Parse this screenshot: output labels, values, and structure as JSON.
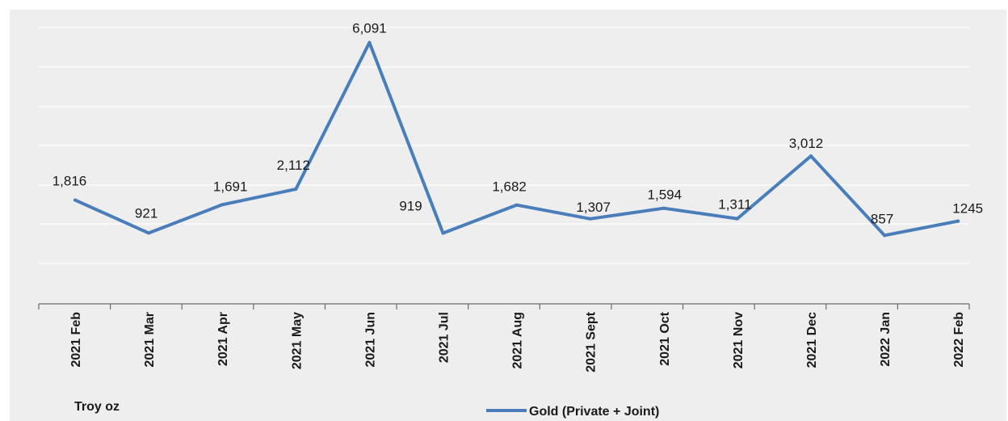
{
  "chart_data": {
    "type": "line",
    "title": "",
    "xlabel": "",
    "ylabel": "",
    "unit_label": "Troy oz",
    "categories": [
      "2021 Feb",
      "2021 Mar",
      "2021 Apr",
      "2021 May",
      "2021 Jun",
      "2021 Jul",
      "2021 Aug",
      "2021 Sept",
      "2021 Oct",
      "2021 Nov",
      "2021 Dec",
      "2022 Jan",
      "2022 Feb"
    ],
    "series": [
      {
        "name": "Gold (Private + Joint)",
        "color": "#4a7ebb",
        "values": [
          1816,
          921,
          1691,
          2112,
          6091,
          919,
          1682,
          1307,
          1594,
          1311,
          3012,
          857,
          1245
        ],
        "value_labels": [
          "1,816",
          "921",
          "1,691",
          "2,112",
          "6,091",
          "919",
          "1,682",
          "1,307",
          "1,594",
          "1,311",
          "3,012",
          "857",
          "1245"
        ]
      }
    ],
    "ylim": [
      -1000,
      6500
    ],
    "grid": true,
    "legend_position": "bottom"
  }
}
